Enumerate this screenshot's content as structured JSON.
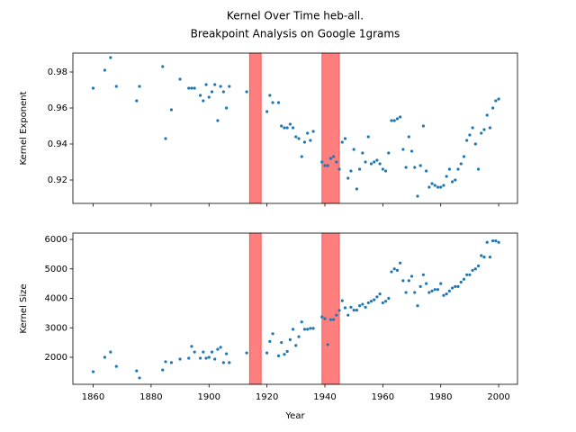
{
  "chart_data": [
    {
      "type": "scatter",
      "title": "Kernel Over Time heb-all.",
      "subtitle": "Breakpoint Analysis on Google 1grams",
      "ylabel": "Kernel Exponent",
      "color": "#1f77b4",
      "span_color": "#ff7f7f",
      "spans": [
        [
          1914,
          1918
        ],
        [
          1939,
          1945
        ]
      ],
      "xlim": [
        1853,
        2006.5
      ],
      "xticks": [
        1860,
        1880,
        1900,
        1920,
        1940,
        1960,
        1980,
        2000
      ],
      "ylim": [
        0.907,
        0.9905
      ],
      "yticks": [
        0.92,
        0.94,
        0.96,
        0.98
      ],
      "x": [
        1860,
        1864,
        1866,
        1868,
        1875,
        1876,
        1884,
        1885,
        1887,
        1890,
        1893,
        1894,
        1895,
        1897,
        1898,
        1899,
        1900,
        1901,
        1902,
        1903,
        1904,
        1905,
        1906,
        1907,
        1913,
        1920,
        1921,
        1922,
        1924,
        1925,
        1926,
        1927,
        1928,
        1929,
        1930,
        1931,
        1932,
        1933,
        1934,
        1935,
        1936,
        1939,
        1940,
        1941,
        1942,
        1943,
        1944,
        1945,
        1946,
        1947,
        1948,
        1949,
        1950,
        1951,
        1952,
        1953,
        1954,
        1955,
        1956,
        1957,
        1958,
        1959,
        1960,
        1961,
        1962,
        1963,
        1964,
        1965,
        1966,
        1967,
        1968,
        1969,
        1970,
        1971,
        1972,
        1973,
        1974,
        1975,
        1976,
        1977,
        1978,
        1979,
        1980,
        1981,
        1982,
        1983,
        1984,
        1985,
        1986,
        1987,
        1988,
        1989,
        1990,
        1991,
        1992,
        1993,
        1994,
        1995,
        1996,
        1997,
        1998,
        1999,
        2000
      ],
      "values": [
        0.971,
        0.981,
        0.988,
        0.972,
        0.964,
        0.972,
        0.983,
        0.943,
        0.959,
        0.976,
        0.971,
        0.971,
        0.971,
        0.967,
        0.964,
        0.973,
        0.966,
        0.969,
        0.973,
        0.953,
        0.972,
        0.969,
        0.96,
        0.972,
        0.969,
        0.958,
        0.967,
        0.963,
        0.963,
        0.95,
        0.949,
        0.949,
        0.951,
        0.949,
        0.944,
        0.943,
        0.933,
        0.941,
        0.946,
        0.942,
        0.947,
        0.93,
        0.928,
        0.928,
        0.932,
        0.933,
        0.93,
        0.926,
        0.941,
        0.943,
        0.921,
        0.925,
        0.937,
        0.915,
        0.926,
        0.935,
        0.93,
        0.944,
        0.929,
        0.93,
        0.931,
        0.929,
        0.926,
        0.925,
        0.935,
        0.953,
        0.953,
        0.954,
        0.955,
        0.937,
        0.927,
        0.944,
        0.936,
        0.927,
        0.911,
        0.928,
        0.95,
        0.925,
        0.916,
        0.918,
        0.917,
        0.916,
        0.916,
        0.917,
        0.922,
        0.926,
        0.919,
        0.92,
        0.926,
        0.929,
        0.933,
        0.942,
        0.945,
        0.949,
        0.94,
        0.926,
        0.946,
        0.948,
        0.956,
        0.949,
        0.96,
        0.964,
        0.965
      ]
    },
    {
      "type": "scatter",
      "xlabel": "Year",
      "ylabel": "Kernel Size",
      "color": "#1f77b4",
      "span_color": "#ff7f7f",
      "spans": [
        [
          1914,
          1918
        ],
        [
          1939,
          1945
        ]
      ],
      "xlim": [
        1853,
        2006.5
      ],
      "xticks": [
        1860,
        1880,
        1900,
        1920,
        1940,
        1960,
        1980,
        2000
      ],
      "ylim": [
        1084,
        6214
      ],
      "yticks": [
        2000,
        3000,
        4000,
        5000,
        6000
      ],
      "x": [
        1860,
        1864,
        1866,
        1868,
        1875,
        1876,
        1884,
        1885,
        1887,
        1890,
        1893,
        1894,
        1895,
        1897,
        1898,
        1899,
        1900,
        1901,
        1902,
        1903,
        1904,
        1905,
        1906,
        1907,
        1913,
        1920,
        1921,
        1922,
        1924,
        1925,
        1926,
        1927,
        1928,
        1929,
        1930,
        1931,
        1932,
        1933,
        1934,
        1935,
        1936,
        1939,
        1940,
        1941,
        1942,
        1943,
        1944,
        1945,
        1946,
        1947,
        1948,
        1949,
        1950,
        1951,
        1952,
        1953,
        1954,
        1955,
        1956,
        1957,
        1958,
        1959,
        1960,
        1961,
        1962,
        1963,
        1964,
        1965,
        1966,
        1967,
        1968,
        1969,
        1970,
        1971,
        1972,
        1973,
        1974,
        1975,
        1976,
        1977,
        1978,
        1979,
        1980,
        1981,
        1982,
        1983,
        1984,
        1985,
        1986,
        1987,
        1988,
        1989,
        1990,
        1991,
        1992,
        1993,
        1994,
        1995,
        1996,
        1997,
        1998,
        1999,
        2000
      ],
      "values": [
        1510,
        2000,
        2180,
        1690,
        1540,
        1300,
        1570,
        1850,
        1820,
        1940,
        1970,
        2370,
        2180,
        1970,
        2180,
        1970,
        2000,
        2180,
        1940,
        2270,
        2340,
        1820,
        2120,
        1820,
        2150,
        2150,
        2540,
        2800,
        2050,
        2500,
        2100,
        2200,
        2600,
        2950,
        2400,
        2700,
        3200,
        2950,
        2950,
        2980,
        2980,
        3370,
        3310,
        2430,
        3280,
        3280,
        3430,
        3590,
        3920,
        3680,
        3430,
        3700,
        3600,
        3600,
        3750,
        3800,
        3700,
        3850,
        3900,
        3950,
        4050,
        4150,
        3850,
        3900,
        4000,
        4900,
        5000,
        4950,
        5200,
        4600,
        4200,
        4600,
        4750,
        4200,
        3750,
        4400,
        4800,
        4500,
        4200,
        4250,
        4300,
        4300,
        4500,
        4100,
        4150,
        4250,
        4350,
        4400,
        4400,
        4550,
        4650,
        4800,
        4800,
        4950,
        5000,
        5100,
        5450,
        5400,
        5900,
        5400,
        5950,
        5950,
        5900
      ]
    }
  ]
}
